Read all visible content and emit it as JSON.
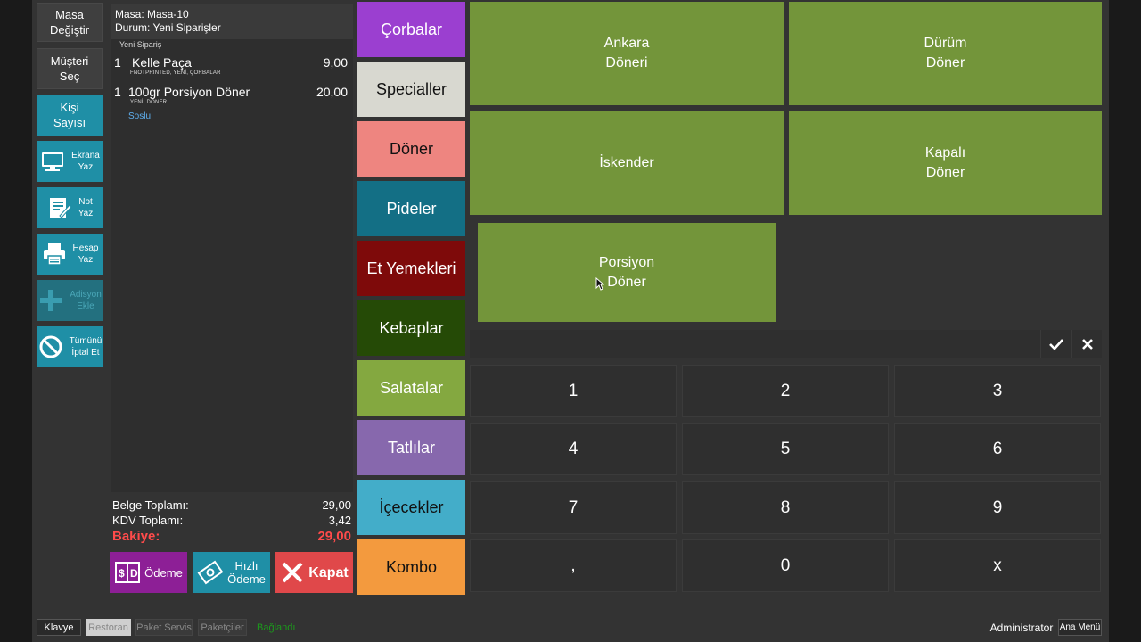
{
  "left_actions": {
    "table_change": "Masa\nDeğiştir",
    "customer_select": "Müşteri\nSeç",
    "guest_count": "Kişi\nSayısı",
    "print_screen": "Ekrana\nYaz",
    "note": "Not\nYaz",
    "print_bill": "Hesap\nYaz",
    "add_ticket": "Adisyon\nEkle",
    "cancel_all": "Tümünü\nİptal Et"
  },
  "order": {
    "table": "Masa: Masa-10",
    "status": "Durum: Yeni Siparişler",
    "group_label": "Yeni Sipariş",
    "items": [
      {
        "qty": "1",
        "name": "Kelle Paça",
        "price": "9,00",
        "tags": "FNOTPRINTED, YENİ, ÇORBALAR",
        "modifier": ""
      },
      {
        "qty": "1",
        "name": "100gr Porsiyon Döner",
        "price": "20,00",
        "tags": "YENİ, DÖNER",
        "modifier": "Soslu"
      }
    ],
    "totals": {
      "doc_label": "Belge Toplamı:",
      "doc_value": "29,00",
      "vat_label": "KDV Toplamı:",
      "vat_value": "3,42",
      "balance_label": "Bakiye:",
      "balance_value": "29,00"
    }
  },
  "payment_buttons": {
    "payment": "Ödeme",
    "quick_payment": "Hızlı\nÖdeme",
    "close": "Kapat"
  },
  "categories": [
    {
      "label": "Çorbalar",
      "color": "#9b3fd0",
      "text": "#ffffff"
    },
    {
      "label": "Specialler",
      "color": "#d8d8d0",
      "text": "#111111"
    },
    {
      "label": "Döner",
      "color": "#ee8580",
      "text": "#111111"
    },
    {
      "label": "Pideler",
      "color": "#136f85",
      "text": "#ffffff"
    },
    {
      "label": "Et Yemekleri",
      "color": "#7e0a0a",
      "text": "#ffffff"
    },
    {
      "label": "Kebaplar",
      "color": "#254a06",
      "text": "#ffffff"
    },
    {
      "label": "Salatalar",
      "color": "#84a840",
      "text": "#ffffff"
    },
    {
      "label": "Tatlılar",
      "color": "#8768ad",
      "text": "#ffffff"
    },
    {
      "label": "İçecekler",
      "color": "#43adc9",
      "text": "#111111"
    },
    {
      "label": "Kombo",
      "color": "#f39a3e",
      "text": "#111111"
    }
  ],
  "products": [
    {
      "label": "Ankara\nDöneri"
    },
    {
      "label": "Dürüm\nDöner"
    },
    {
      "label": "İskender"
    },
    {
      "label": "Kapalı\nDöner"
    },
    {
      "label": "Porsiyon\nDöner"
    }
  ],
  "numpad": {
    "input_value": "",
    "keys": [
      "1",
      "2",
      "3",
      "4",
      "5",
      "6",
      "7",
      "8",
      "9",
      ",",
      "0",
      "x"
    ]
  },
  "status_bar": {
    "keyboard": "Klavye",
    "restaurant": "Restoran",
    "delivery": "Paket Servis",
    "couriers": "Paketçiler",
    "connection": "Bağlandı",
    "user": "Administrator",
    "main_menu": "Ana Menü"
  },
  "colors": {
    "teal": "#1f8fa6",
    "product_green": "#73953a",
    "balance_red": "#ff4b4b",
    "purple": "#8d1f96",
    "close_red": "#e0484a"
  }
}
